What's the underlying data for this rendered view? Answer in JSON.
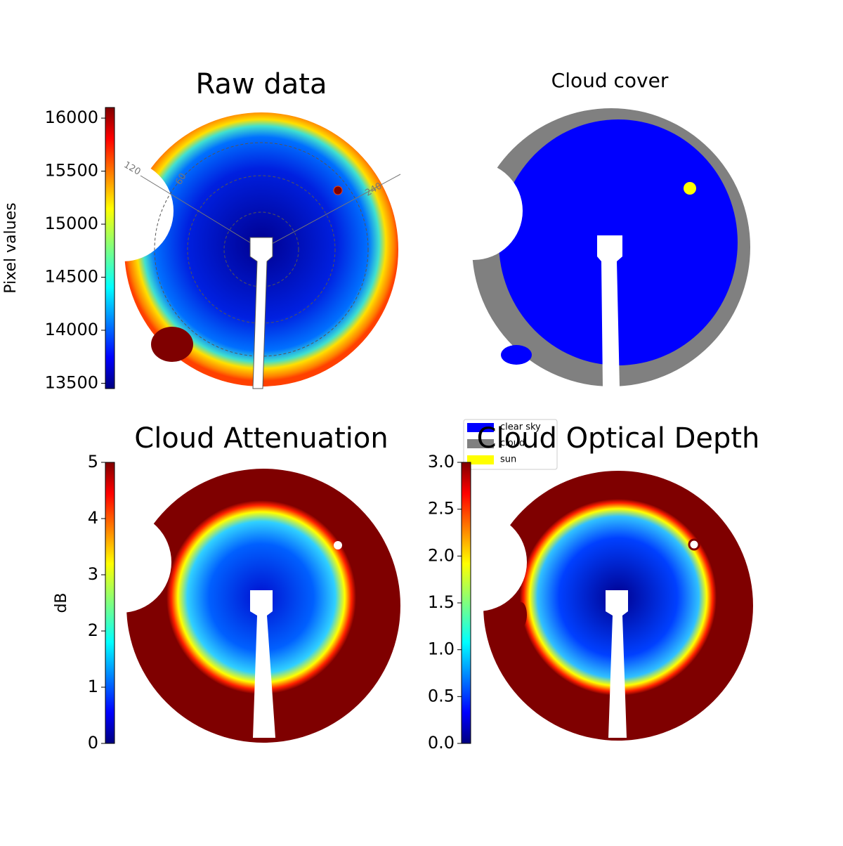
{
  "chart_data": [
    {
      "type": "image",
      "title": "Raw data",
      "colorbar_label": "Pixel values",
      "colormap": "jet",
      "ylim": [
        13450,
        16100
      ],
      "yticks": [
        13500,
        14000,
        14500,
        15000,
        15500,
        16000
      ],
      "angle_labels": [
        "120",
        "60",
        "240"
      ]
    },
    {
      "type": "image",
      "title": "Cloud cover",
      "series": [
        {
          "name": "clear sky",
          "color": "#0000ff"
        },
        {
          "name": "cloud",
          "color": "#808080"
        },
        {
          "name": "sun",
          "color": "#ffff00"
        }
      ]
    },
    {
      "type": "image",
      "title": "Cloud Attenuation",
      "colorbar_label": "dB",
      "colormap": "jet",
      "ylim": [
        0,
        5
      ],
      "yticks": [
        0,
        1,
        2,
        3,
        4,
        5
      ]
    },
    {
      "type": "image",
      "title": "Cloud Optical Depth",
      "colormap": "jet",
      "ylim": [
        0,
        3
      ],
      "yticks": [
        {
          "value": 0,
          "label": "0.0"
        },
        0.5,
        {
          "value": 1,
          "label": "1.0"
        },
        1.5,
        {
          "value": 2,
          "label": "2.0"
        },
        2.5,
        {
          "value": 3,
          "label": "3.0"
        }
      ]
    }
  ]
}
